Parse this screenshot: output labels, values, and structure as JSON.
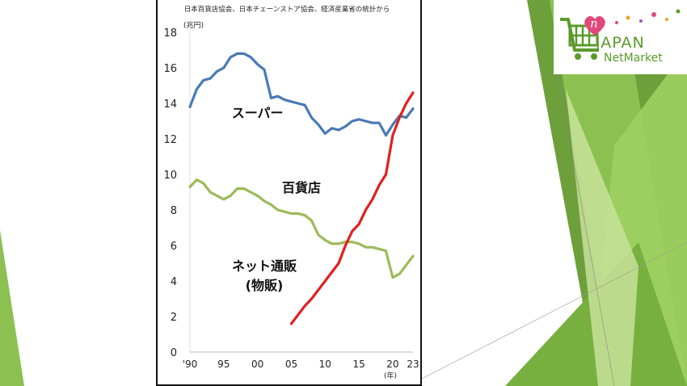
{
  "logo": {
    "line1": "JAPAN",
    "line2": "NetMarket",
    "badge": "n",
    "brand_color": "#5a9a2a",
    "heart_color": "#e3477a"
  },
  "chart_data": {
    "type": "line",
    "source_note": "日本百貨店協会、日本チェーンストア協会、経済産業省の統計から",
    "ylabel": "(兆円)",
    "xlabel": "(年)",
    "ylim": [
      0,
      18
    ],
    "xlim": [
      1990,
      2023
    ],
    "y_ticks": [
      0,
      2,
      4,
      6,
      8,
      10,
      12,
      14,
      16,
      18
    ],
    "x_ticks": [
      {
        "value": 1990,
        "label": "'90"
      },
      {
        "value": 1995,
        "label": "95"
      },
      {
        "value": 2000,
        "label": "00"
      },
      {
        "value": 2005,
        "label": "05"
      },
      {
        "value": 2010,
        "label": "10"
      },
      {
        "value": 2015,
        "label": "15"
      },
      {
        "value": 2020,
        "label": "20"
      },
      {
        "value": 2023,
        "label": "23"
      }
    ],
    "grid": false,
    "series": [
      {
        "name": "スーパー",
        "color": "#4a7ab5",
        "x": [
          1990,
          1991,
          1992,
          1993,
          1994,
          1995,
          1996,
          1997,
          1998,
          1999,
          2000,
          2001,
          2002,
          2003,
          2004,
          2005,
          2006,
          2007,
          2008,
          2009,
          2010,
          2011,
          2012,
          2013,
          2014,
          2015,
          2016,
          2017,
          2018,
          2019,
          2020,
          2021,
          2022,
          2023
        ],
        "values": [
          13.8,
          14.8,
          15.3,
          15.4,
          15.8,
          16.0,
          16.6,
          16.8,
          16.8,
          16.6,
          16.2,
          15.9,
          14.3,
          14.4,
          14.2,
          14.1,
          14.0,
          13.9,
          13.2,
          12.8,
          12.3,
          12.6,
          12.5,
          12.7,
          13.0,
          13.1,
          13.0,
          12.9,
          12.9,
          12.2,
          12.8,
          13.3,
          13.2,
          13.7
        ],
        "label_pos": {
          "x": 2000.0,
          "y": 13.2
        }
      },
      {
        "name": "百貨店",
        "color": "#9bbb59",
        "x": [
          1990,
          1991,
          1992,
          1993,
          1994,
          1995,
          1996,
          1997,
          1998,
          1999,
          2000,
          2001,
          2002,
          2003,
          2004,
          2005,
          2006,
          2007,
          2008,
          2009,
          2010,
          2011,
          2012,
          2013,
          2014,
          2015,
          2016,
          2017,
          2018,
          2019,
          2020,
          2021,
          2022,
          2023
        ],
        "values": [
          9.3,
          9.7,
          9.5,
          9.0,
          8.8,
          8.6,
          8.8,
          9.2,
          9.2,
          9.0,
          8.8,
          8.5,
          8.3,
          8.0,
          7.9,
          7.8,
          7.8,
          7.7,
          7.4,
          6.6,
          6.3,
          6.1,
          6.1,
          6.2,
          6.2,
          6.1,
          5.9,
          5.9,
          5.8,
          5.7,
          4.2,
          4.4,
          4.9,
          5.4
        ],
        "label_pos": {
          "x": 2006.5,
          "y": 9.0
        }
      },
      {
        "name": "ネット通販",
        "name_line2": "(物販)",
        "color": "#e02020",
        "x": [
          2005,
          2006,
          2007,
          2008,
          2009,
          2010,
          2011,
          2012,
          2013,
          2014,
          2015,
          2016,
          2017,
          2018,
          2019,
          2020,
          2021,
          2022,
          2023
        ],
        "values": [
          1.6,
          2.1,
          2.6,
          3.0,
          3.5,
          4.0,
          4.5,
          5.0,
          6.0,
          6.8,
          7.2,
          8.0,
          8.6,
          9.4,
          10.0,
          12.2,
          13.2,
          14.0,
          14.6
        ],
        "label_pos": {
          "x": 2001.0,
          "y": 4.6
        }
      }
    ]
  }
}
